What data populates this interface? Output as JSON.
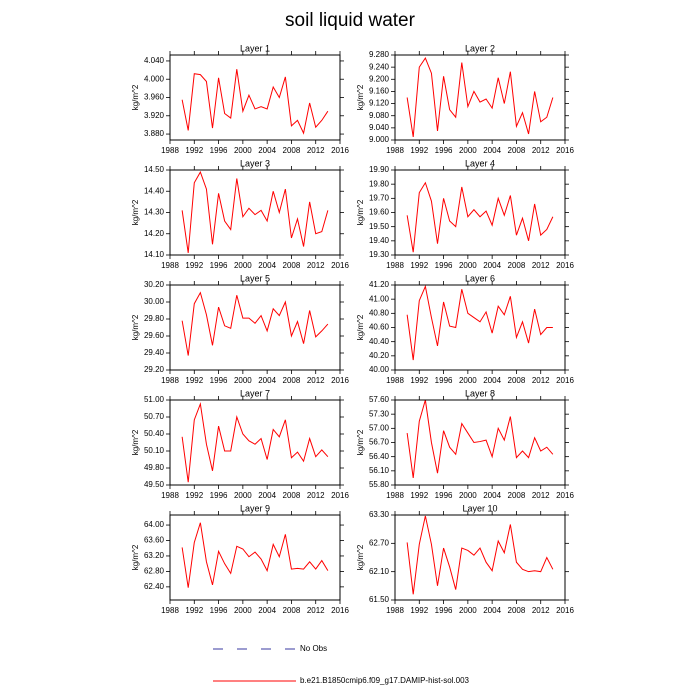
{
  "title": "soil liquid water",
  "legend": [
    {
      "name": "No Obs",
      "color": "#3a3aa0",
      "dash": true
    },
    {
      "name": "b.e21.B1850cmip6.f09_g17.DAMIP-hist-sol.003",
      "color": "#ff0000",
      "dash": false
    }
  ],
  "chart_data": [
    {
      "type": "line",
      "title": "Layer 1",
      "ylabel": "kg/m^2",
      "x": [
        1990,
        1991,
        1992,
        1993,
        1994,
        1995,
        1996,
        1997,
        1998,
        1999,
        2000,
        2001,
        2002,
        2003,
        2004,
        2005,
        2006,
        2007,
        2008,
        2009,
        2010,
        2011,
        2012,
        2013,
        2014
      ],
      "series": [
        {
          "name": "b.e21.B1850cmip6.f09_g17.DAMIP-hist-sol.003",
          "color": "#ff0000",
          "values": [
            3.955,
            3.888,
            4.012,
            4.01,
            3.995,
            3.893,
            4.003,
            3.925,
            3.915,
            4.022,
            3.93,
            3.965,
            3.935,
            3.94,
            3.935,
            3.983,
            3.96,
            4.005,
            3.898,
            3.91,
            3.882,
            3.948,
            3.895,
            3.91,
            3.93
          ]
        }
      ],
      "xlim": [
        1988,
        2016
      ],
      "xticks": [
        1988,
        1992,
        1996,
        2000,
        2004,
        2008,
        2012,
        2016
      ],
      "ylim": [
        3.867,
        4.053
      ],
      "yticks": [
        {
          "value": 4.04,
          "label": "4.040"
        },
        {
          "value": 4.0,
          "label": "4.000"
        },
        {
          "value": 3.96,
          "label": "3.960"
        },
        {
          "value": 3.92,
          "label": "3.920"
        },
        {
          "value": 3.88,
          "label": "3.880"
        }
      ]
    },
    {
      "type": "line",
      "title": "Layer 2",
      "ylabel": "kg/m^2",
      "x": [
        1990,
        1991,
        1992,
        1993,
        1994,
        1995,
        1996,
        1997,
        1998,
        1999,
        2000,
        2001,
        2002,
        2003,
        2004,
        2005,
        2006,
        2007,
        2008,
        2009,
        2010,
        2011,
        2012,
        2013,
        2014
      ],
      "series": [
        {
          "name": "b.e21.B1850cmip6.f09_g17.DAMIP-hist-sol.003",
          "color": "#ff0000",
          "values": [
            9.14,
            9.01,
            9.24,
            9.27,
            9.22,
            9.03,
            9.21,
            9.1,
            9.075,
            9.255,
            9.11,
            9.16,
            9.125,
            9.135,
            9.105,
            9.205,
            9.12,
            9.225,
            9.045,
            9.09,
            9.02,
            9.16,
            9.06,
            9.075,
            9.14
          ]
        }
      ],
      "xlim": [
        1988,
        2016
      ],
      "xticks": [
        1988,
        1992,
        1996,
        2000,
        2004,
        2008,
        2012,
        2016
      ],
      "ylim": [
        9.0,
        9.28
      ],
      "yticks": [
        {
          "value": 9.28,
          "label": "9.280"
        },
        {
          "value": 9.24,
          "label": "9.240"
        },
        {
          "value": 9.2,
          "label": "9.200"
        },
        {
          "value": 9.16,
          "label": "9.160"
        },
        {
          "value": 9.12,
          "label": "9.120"
        },
        {
          "value": 9.08,
          "label": "9.080"
        },
        {
          "value": 9.04,
          "label": "9.040"
        },
        {
          "value": 9.0,
          "label": "9.000"
        }
      ]
    },
    {
      "type": "line",
      "title": "Layer 3",
      "ylabel": "kg/m^2",
      "x": [
        1990,
        1991,
        1992,
        1993,
        1994,
        1995,
        1996,
        1997,
        1998,
        1999,
        2000,
        2001,
        2002,
        2003,
        2004,
        2005,
        2006,
        2007,
        2008,
        2009,
        2010,
        2011,
        2012,
        2013,
        2014
      ],
      "series": [
        {
          "name": "b.e21.B1850cmip6.f09_g17.DAMIP-hist-sol.003",
          "color": "#ff0000",
          "values": [
            14.31,
            14.11,
            14.44,
            14.49,
            14.41,
            14.15,
            14.39,
            14.26,
            14.22,
            14.46,
            14.28,
            14.32,
            14.29,
            14.31,
            14.26,
            14.4,
            14.3,
            14.41,
            14.18,
            14.27,
            14.14,
            14.35,
            14.2,
            14.21,
            14.31
          ]
        }
      ],
      "xlim": [
        1988,
        2016
      ],
      "xticks": [
        1988,
        1992,
        1996,
        2000,
        2004,
        2008,
        2012,
        2016
      ],
      "ylim": [
        14.1,
        14.5
      ],
      "yticks": [
        {
          "value": 14.5,
          "label": "14.50"
        },
        {
          "value": 14.4,
          "label": "14.40"
        },
        {
          "value": 14.3,
          "label": "14.30"
        },
        {
          "value": 14.2,
          "label": "14.20"
        },
        {
          "value": 14.1,
          "label": "14.10"
        }
      ]
    },
    {
      "type": "line",
      "title": "Layer 4",
      "ylabel": "kg/m^2",
      "x": [
        1990,
        1991,
        1992,
        1993,
        1994,
        1995,
        1996,
        1997,
        1998,
        1999,
        2000,
        2001,
        2002,
        2003,
        2004,
        2005,
        2006,
        2007,
        2008,
        2009,
        2010,
        2011,
        2012,
        2013,
        2014
      ],
      "series": [
        {
          "name": "b.e21.B1850cmip6.f09_g17.DAMIP-hist-sol.003",
          "color": "#ff0000",
          "values": [
            19.58,
            19.32,
            19.74,
            19.81,
            19.68,
            19.38,
            19.7,
            19.54,
            19.5,
            19.78,
            19.57,
            19.62,
            19.57,
            19.61,
            19.51,
            19.7,
            19.58,
            19.72,
            19.44,
            19.56,
            19.4,
            19.66,
            19.44,
            19.48,
            19.57
          ]
        }
      ],
      "xlim": [
        1988,
        2016
      ],
      "xticks": [
        1988,
        1992,
        1996,
        2000,
        2004,
        2008,
        2012,
        2016
      ],
      "ylim": [
        19.3,
        19.9
      ],
      "yticks": [
        {
          "value": 19.9,
          "label": "19.90"
        },
        {
          "value": 19.8,
          "label": "19.80"
        },
        {
          "value": 19.7,
          "label": "19.70"
        },
        {
          "value": 19.6,
          "label": "19.60"
        },
        {
          "value": 19.5,
          "label": "19.50"
        },
        {
          "value": 19.4,
          "label": "19.40"
        },
        {
          "value": 19.3,
          "label": "19.30"
        }
      ]
    },
    {
      "type": "line",
      "title": "Layer 5",
      "ylabel": "kg/m^2",
      "x": [
        1990,
        1991,
        1992,
        1993,
        1994,
        1995,
        1996,
        1997,
        1998,
        1999,
        2000,
        2001,
        2002,
        2003,
        2004,
        2005,
        2006,
        2007,
        2008,
        2009,
        2010,
        2011,
        2012,
        2013,
        2014
      ],
      "series": [
        {
          "name": "b.e21.B1850cmip6.f09_g17.DAMIP-hist-sol.003",
          "color": "#ff0000",
          "values": [
            29.78,
            29.37,
            29.98,
            30.11,
            29.85,
            29.49,
            29.94,
            29.72,
            29.69,
            30.08,
            29.81,
            29.81,
            29.75,
            29.84,
            29.66,
            29.92,
            29.84,
            30.0,
            29.6,
            29.77,
            29.51,
            29.9,
            29.59,
            29.66,
            29.74
          ]
        }
      ],
      "xlim": [
        1988,
        2016
      ],
      "xticks": [
        1988,
        1992,
        1996,
        2000,
        2004,
        2008,
        2012,
        2016
      ],
      "ylim": [
        29.2,
        30.2
      ],
      "yticks": [
        {
          "value": 30.2,
          "label": "30.20"
        },
        {
          "value": 30.0,
          "label": "30.00"
        },
        {
          "value": 29.8,
          "label": "29.80"
        },
        {
          "value": 29.6,
          "label": "29.60"
        },
        {
          "value": 29.4,
          "label": "29.40"
        },
        {
          "value": 29.2,
          "label": "29.20"
        }
      ]
    },
    {
      "type": "line",
      "title": "Layer 6",
      "ylabel": "kg/m^2",
      "x": [
        1990,
        1991,
        1992,
        1993,
        1994,
        1995,
        1996,
        1997,
        1998,
        1999,
        2000,
        2001,
        2002,
        2003,
        2004,
        2005,
        2006,
        2007,
        2008,
        2009,
        2010,
        2011,
        2012,
        2013,
        2014
      ],
      "series": [
        {
          "name": "b.e21.B1850cmip6.f09_g17.DAMIP-hist-sol.003",
          "color": "#ff0000",
          "values": [
            40.78,
            40.14,
            40.98,
            41.18,
            40.74,
            40.34,
            40.96,
            40.62,
            40.6,
            41.14,
            40.8,
            40.74,
            40.68,
            40.82,
            40.52,
            40.9,
            40.78,
            41.04,
            40.46,
            40.68,
            40.38,
            40.86,
            40.5,
            40.6,
            40.6
          ]
        }
      ],
      "xlim": [
        1988,
        2016
      ],
      "xticks": [
        1988,
        1992,
        1996,
        2000,
        2004,
        2008,
        2012,
        2016
      ],
      "ylim": [
        40.0,
        41.2
      ],
      "yticks": [
        {
          "value": 41.2,
          "label": "41.20"
        },
        {
          "value": 41.0,
          "label": "41.00"
        },
        {
          "value": 40.8,
          "label": "40.80"
        },
        {
          "value": 40.6,
          "label": "40.60"
        },
        {
          "value": 40.4,
          "label": "40.40"
        },
        {
          "value": 40.2,
          "label": "40.20"
        },
        {
          "value": 40.0,
          "label": "40.00"
        }
      ]
    },
    {
      "type": "line",
      "title": "Layer 7",
      "ylabel": "kg/m^2",
      "x": [
        1990,
        1991,
        1992,
        1993,
        1994,
        1995,
        1996,
        1997,
        1998,
        1999,
        2000,
        2001,
        2002,
        2003,
        2004,
        2005,
        2006,
        2007,
        2008,
        2009,
        2010,
        2011,
        2012,
        2013,
        2014
      ],
      "series": [
        {
          "name": "b.e21.B1850cmip6.f09_g17.DAMIP-hist-sol.003",
          "color": "#ff0000",
          "values": [
            50.35,
            49.55,
            50.65,
            50.93,
            50.22,
            49.75,
            50.54,
            50.1,
            50.1,
            50.7,
            50.4,
            50.28,
            50.22,
            50.32,
            49.95,
            50.48,
            50.35,
            50.65,
            49.98,
            50.08,
            49.92,
            50.32,
            50.0,
            50.12,
            50.0
          ]
        }
      ],
      "xlim": [
        1988,
        2016
      ],
      "xticks": [
        1988,
        1992,
        1996,
        2000,
        2004,
        2008,
        2012,
        2016
      ],
      "ylim": [
        49.5,
        51.0
      ],
      "yticks": [
        {
          "value": 51.0,
          "label": "51.00"
        },
        {
          "value": 50.7,
          "label": "50.70"
        },
        {
          "value": 50.4,
          "label": "50.40"
        },
        {
          "value": 50.1,
          "label": "50.10"
        },
        {
          "value": 49.8,
          "label": "49.80"
        },
        {
          "value": 49.5,
          "label": "49.50"
        }
      ]
    },
    {
      "type": "line",
      "title": "Layer 8",
      "ylabel": "kg/m^2",
      "x": [
        1990,
        1991,
        1992,
        1993,
        1994,
        1995,
        1996,
        1997,
        1998,
        1999,
        2000,
        2001,
        2002,
        2003,
        2004,
        2005,
        2006,
        2007,
        2008,
        2009,
        2010,
        2011,
        2012,
        2013,
        2014
      ],
      "series": [
        {
          "name": "b.e21.B1850cmip6.f09_g17.DAMIP-hist-sol.003",
          "color": "#ff0000",
          "values": [
            56.9,
            55.95,
            57.15,
            57.6,
            56.7,
            56.05,
            56.95,
            56.6,
            56.45,
            57.1,
            56.9,
            56.7,
            56.72,
            56.75,
            56.4,
            57.0,
            56.75,
            57.25,
            56.38,
            56.52,
            56.38,
            56.8,
            56.52,
            56.6,
            56.45
          ]
        }
      ],
      "xlim": [
        1988,
        2016
      ],
      "xticks": [
        1988,
        1992,
        1996,
        2000,
        2004,
        2008,
        2012,
        2016
      ],
      "ylim": [
        55.8,
        57.6
      ],
      "yticks": [
        {
          "value": 57.6,
          "label": "57.60"
        },
        {
          "value": 57.3,
          "label": "57.30"
        },
        {
          "value": 57.0,
          "label": "57.00"
        },
        {
          "value": 56.7,
          "label": "56.70"
        },
        {
          "value": 56.4,
          "label": "56.40"
        },
        {
          "value": 56.1,
          "label": "56.10"
        },
        {
          "value": 55.8,
          "label": "55.80"
        }
      ]
    },
    {
      "type": "line",
      "title": "Layer 9",
      "ylabel": "kg/m^2",
      "x": [
        1990,
        1991,
        1992,
        1993,
        1994,
        1995,
        1996,
        1997,
        1998,
        1999,
        2000,
        2001,
        2002,
        2003,
        2004,
        2005,
        2006,
        2007,
        2008,
        2009,
        2010,
        2011,
        2012,
        2013,
        2014
      ],
      "series": [
        {
          "name": "b.e21.B1850cmip6.f09_g17.DAMIP-hist-sol.003",
          "color": "#ff0000",
          "values": [
            63.42,
            62.38,
            63.55,
            64.06,
            63.05,
            62.45,
            63.32,
            63.0,
            62.75,
            63.45,
            63.38,
            63.18,
            63.3,
            63.12,
            62.82,
            63.5,
            63.18,
            63.76,
            62.86,
            62.88,
            62.86,
            63.05,
            62.86,
            63.08,
            62.82
          ]
        }
      ],
      "xlim": [
        1988,
        2016
      ],
      "xticks": [
        1988,
        1992,
        1996,
        2000,
        2004,
        2008,
        2012,
        2016
      ],
      "ylim": [
        62.06,
        64.26
      ],
      "yticks": [
        {
          "value": 64.0,
          "label": "64.00"
        },
        {
          "value": 63.6,
          "label": "63.60"
        },
        {
          "value": 63.2,
          "label": "63.20"
        },
        {
          "value": 62.8,
          "label": "62.80"
        },
        {
          "value": 62.4,
          "label": "62.40"
        }
      ]
    },
    {
      "type": "line",
      "title": "Layer 10",
      "ylabel": "kg/m^2",
      "x": [
        1990,
        1991,
        1992,
        1993,
        1994,
        1995,
        1996,
        1997,
        1998,
        1999,
        2000,
        2001,
        2002,
        2003,
        2004,
        2005,
        2006,
        2007,
        2008,
        2009,
        2010,
        2011,
        2012,
        2013,
        2014
      ],
      "series": [
        {
          "name": "b.e21.B1850cmip6.f09_g17.DAMIP-hist-sol.003",
          "color": "#ff0000",
          "values": [
            62.72,
            61.62,
            62.68,
            63.28,
            62.68,
            61.8,
            62.6,
            62.2,
            61.72,
            62.6,
            62.55,
            62.45,
            62.6,
            62.3,
            62.12,
            62.75,
            62.5,
            63.1,
            62.3,
            62.15,
            62.1,
            62.12,
            62.1,
            62.4,
            62.15
          ]
        }
      ],
      "xlim": [
        1988,
        2016
      ],
      "xticks": [
        1988,
        1992,
        1996,
        2000,
        2004,
        2008,
        2012,
        2016
      ],
      "ylim": [
        61.5,
        63.3
      ],
      "yticks": [
        {
          "value": 63.3,
          "label": "63.30"
        },
        {
          "value": 62.7,
          "label": "62.70"
        },
        {
          "value": 62.1,
          "label": "62.10"
        },
        {
          "value": 61.5,
          "label": "61.50"
        }
      ]
    }
  ]
}
